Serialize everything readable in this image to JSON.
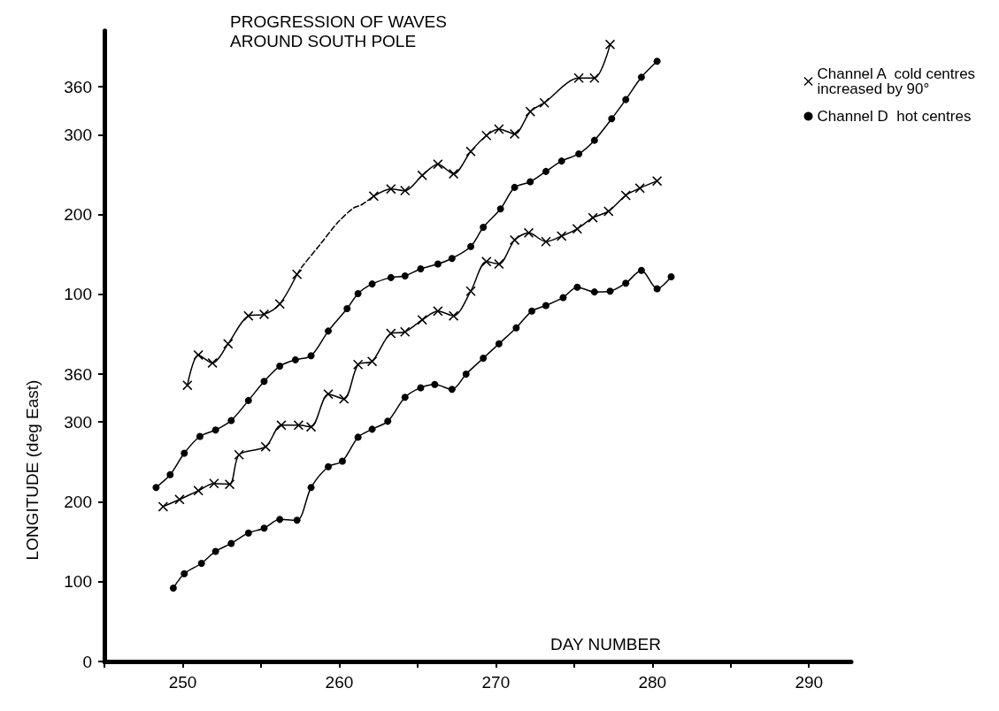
{
  "chart_data": {
    "type": "line",
    "title": "PROGRESSION OF WAVES\nAROUND SOUTH POLE",
    "xlabel": "DAY NUMBER",
    "y2label": "LONGITUDE (deg East)",
    "xlim": [
      245,
      292.7
    ],
    "xticks": [
      {
        "value": 245,
        "label": null
      },
      250,
      {
        "value": 255,
        "label": null
      },
      260,
      {
        "value": 265,
        "label": null
      },
      270,
      {
        "value": 275,
        "label": null
      },
      280,
      {
        "value": 285,
        "label": null
      },
      290
    ],
    "ylim": [
      0,
      790
    ],
    "yticks": [
      0,
      100,
      200,
      300,
      360
    ],
    "y2lim": [
      -360,
      430
    ],
    "y2ticks": [
      100,
      200,
      300,
      360
    ],
    "grid": false,
    "legend": "top right",
    "series": [
      {
        "name": "Channel A  cold centres\nincreased by 90°",
        "color": "#000000",
        "marker": "cross",
        "x": [
          250.3,
          251.0,
          251.9,
          252.9,
          254.2,
          255.2,
          256.2,
          257.3
        ],
        "values": [
          346,
          384,
          374,
          398,
          433,
          435,
          448,
          485
        ]
      },
      {
        "color": "#000000",
        "marker": "cross",
        "x": [
          262.2,
          263.3,
          264.2,
          265.3,
          266.3,
          267.3,
          268.4,
          269.4,
          270.2,
          271.2,
          272.2,
          273.1,
          275.3,
          276.3,
          277.3
        ],
        "values": [
          583,
          592,
          590,
          609,
          623,
          611,
          639,
          659,
          667,
          661,
          689,
          700,
          731,
          731,
          773
        ]
      },
      {
        "color": "#000000",
        "marker": "cross",
        "x": [
          248.75,
          249.8,
          251.0,
          252.0,
          253.0,
          253.6,
          255.3,
          256.3,
          257.4,
          258.2,
          259.3,
          260.3,
          261.2,
          262.1,
          263.3,
          264.2,
          265.3,
          266.3,
          267.3,
          268.4,
          269.4,
          270.2,
          271.2,
          272.1,
          273.2,
          274.2,
          275.2,
          276.2,
          277.2,
          278.3,
          279.2,
          280.3
        ],
        "values": [
          194,
          203,
          214,
          223,
          222,
          259,
          269,
          296,
          296,
          294,
          335,
          329,
          372,
          376,
          411,
          413,
          428,
          439,
          433,
          464,
          501,
          498,
          528,
          537,
          526,
          533,
          542,
          556,
          564,
          584,
          593,
          602
        ]
      },
      {
        "color": "#000000",
        "marker": "none",
        "line_style": "dashed",
        "x": [
          257.3,
          257.6,
          258.8,
          259.9,
          260.9,
          261.4,
          262.2
        ],
        "values": [
          485,
          494,
          523,
          550,
          568,
          572,
          583
        ]
      },
      {
        "name": "Channel D  hot centres",
        "color": "#000000",
        "marker": "circle",
        "x": [
          248.3,
          249.2,
          250.1,
          251.1,
          252.1,
          253.1,
          254.2,
          255.2,
          256.2,
          257.2,
          258.2,
          259.3,
          260.5,
          261.2,
          262.1,
          263.3,
          264.2,
          265.2,
          266.3,
          267.2,
          268.4,
          269.2,
          270.3,
          271.2,
          272.2,
          273.2,
          274.2,
          275.3,
          276.3,
          277.4,
          278.3,
          279.3,
          280.3
        ],
        "values": [
          218,
          234,
          261,
          282,
          290,
          302,
          327,
          351,
          370,
          378,
          383,
          414,
          442,
          461,
          473,
          481,
          483,
          492,
          498,
          505,
          520,
          544,
          567,
          594,
          601,
          614,
          627,
          636,
          653,
          680,
          704,
          732,
          752
        ]
      },
      {
        "color": "#000000",
        "marker": "circle",
        "x": [
          249.4,
          250.1,
          251.2,
          252.1,
          253.1,
          254.2,
          255.2,
          256.2,
          257.3,
          258.2,
          259.3,
          260.2,
          261.2,
          262.1,
          263.1,
          264.2,
          265.2,
          266.1,
          267.2,
          268.1,
          269.2,
          270.2,
          271.3,
          272.3,
          273.2,
          274.3,
          275.2,
          276.3,
          277.3,
          278.3,
          279.3,
          280.3,
          281.2
        ],
        "values": [
          92,
          110,
          123,
          138,
          148,
          161,
          167,
          178,
          177,
          218,
          244,
          251,
          281,
          291,
          301,
          331,
          343,
          347,
          341,
          360,
          380,
          398,
          418,
          439,
          446,
          456,
          469,
          463,
          464,
          474,
          490,
          467,
          482
        ]
      }
    ]
  }
}
